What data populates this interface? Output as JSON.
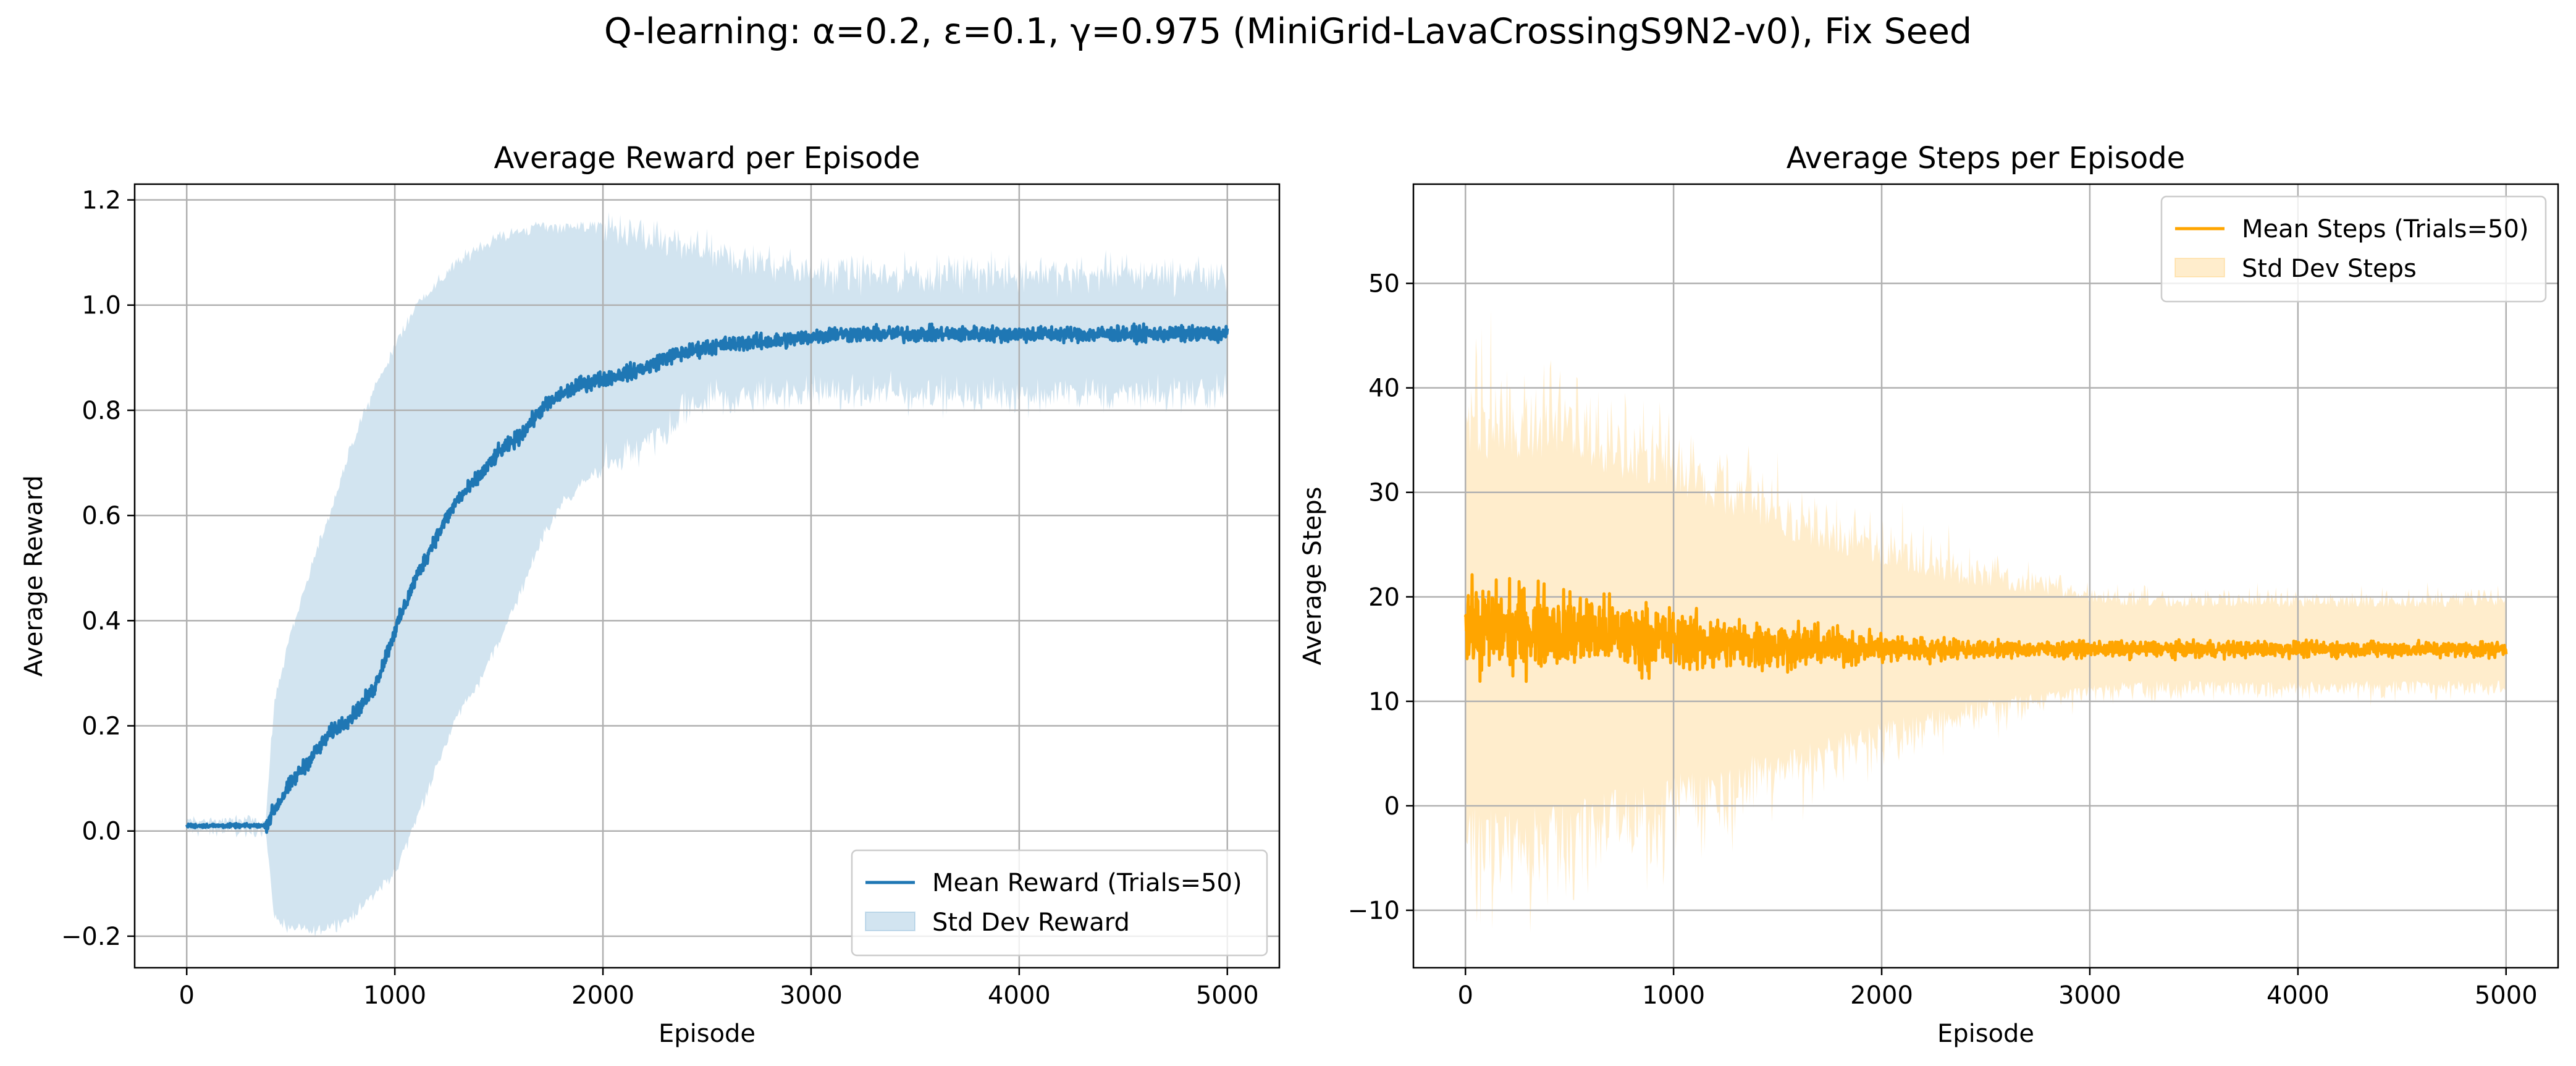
{
  "suptitle": "Q-learning: α=0.2, ε=0.1, γ=0.975 (MiniGrid-LavaCrossingS9N2-v0), Fix Seed",
  "chart_data": [
    {
      "type": "line",
      "title": "Average Reward per Episode",
      "xlabel": "Episode",
      "ylabel": "Average Reward",
      "xlim": [
        -250,
        5250
      ],
      "ylim": [
        -0.26,
        1.23
      ],
      "xticks": [
        0,
        1000,
        2000,
        3000,
        4000,
        5000
      ],
      "xtick_labels": [
        "0",
        "1000",
        "2000",
        "3000",
        "4000",
        "5000"
      ],
      "yticks": [
        -0.2,
        0.0,
        0.2,
        0.4,
        0.6,
        0.8,
        1.0,
        1.2
      ],
      "ytick_labels": [
        "−0.2",
        "0.0",
        "0.2",
        "0.4",
        "0.6",
        "0.8",
        "1.0",
        "1.2"
      ],
      "grid": true,
      "legend_position": "lower-right",
      "series": [
        {
          "name": "Mean Reward (Trials=50)",
          "kind": "line",
          "color": "#1f77b4",
          "x": [
            0,
            100,
            200,
            300,
            380,
            420,
            500,
            600,
            700,
            800,
            900,
            1000,
            1100,
            1200,
            1300,
            1400,
            1500,
            1600,
            1700,
            1800,
            1900,
            2000,
            2100,
            2200,
            2300,
            2400,
            2500,
            2600,
            2700,
            2800,
            2900,
            3000,
            3100,
            3200,
            3400,
            3600,
            3800,
            4000,
            4200,
            4400,
            4600,
            4800,
            5000
          ],
          "y": [
            0.01,
            0.01,
            0.01,
            0.01,
            0.01,
            0.04,
            0.09,
            0.14,
            0.19,
            0.22,
            0.27,
            0.38,
            0.48,
            0.56,
            0.63,
            0.67,
            0.72,
            0.75,
            0.8,
            0.83,
            0.85,
            0.86,
            0.87,
            0.88,
            0.9,
            0.91,
            0.92,
            0.925,
            0.93,
            0.93,
            0.935,
            0.94,
            0.945,
            0.945,
            0.945,
            0.945,
            0.945,
            0.945,
            0.945,
            0.945,
            0.945,
            0.945,
            0.945
          ],
          "noise": 0.012
        },
        {
          "name": "Std Dev Reward",
          "kind": "band",
          "color": "#1f77b4",
          "opacity": 0.2,
          "x": [
            0,
            200,
            380,
            420,
            500,
            600,
            700,
            800,
            900,
            1000,
            1100,
            1200,
            1300,
            1400,
            1500,
            1600,
            1700,
            1800,
            1900,
            2000,
            2100,
            2200,
            2300,
            2400,
            2500,
            2600,
            2800,
            3000,
            3200,
            3500,
            4000,
            4500,
            5000
          ],
          "lower": [
            0.0,
            0.0,
            0.0,
            -0.16,
            -0.19,
            -0.19,
            -0.18,
            -0.16,
            -0.12,
            -0.08,
            0.02,
            0.12,
            0.22,
            0.28,
            0.36,
            0.45,
            0.55,
            0.62,
            0.66,
            0.69,
            0.71,
            0.73,
            0.75,
            0.8,
            0.82,
            0.82,
            0.83,
            0.83,
            0.83,
            0.83,
            0.83,
            0.83,
            0.83
          ],
          "upper": [
            0.02,
            0.02,
            0.02,
            0.24,
            0.38,
            0.5,
            0.62,
            0.74,
            0.84,
            0.92,
            1.0,
            1.04,
            1.08,
            1.11,
            1.13,
            1.14,
            1.15,
            1.15,
            1.15,
            1.15,
            1.14,
            1.13,
            1.12,
            1.11,
            1.1,
            1.09,
            1.08,
            1.07,
            1.06,
            1.06,
            1.06,
            1.06,
            1.06
          ]
        }
      ]
    },
    {
      "type": "line",
      "title": "Average Steps per Episode",
      "xlabel": "Episode",
      "ylabel": "Average Steps",
      "xlim": [
        -250,
        5250
      ],
      "ylim": [
        -15.5,
        59.5
      ],
      "xticks": [
        0,
        1000,
        2000,
        3000,
        4000,
        5000
      ],
      "xtick_labels": [
        "0",
        "1000",
        "2000",
        "3000",
        "4000",
        "5000"
      ],
      "yticks": [
        -10,
        0,
        10,
        20,
        30,
        40,
        50
      ],
      "ytick_labels": [
        "−10",
        "0",
        "10",
        "20",
        "30",
        "40",
        "50"
      ],
      "grid": true,
      "legend_position": "upper-right",
      "series": [
        {
          "name": "Mean Steps (Trials=50)",
          "kind": "line",
          "color": "#ffa500",
          "x": [
            0,
            100,
            200,
            300,
            400,
            500,
            600,
            700,
            800,
            900,
            1000,
            1200,
            1400,
            1600,
            1800,
            2000,
            2200,
            2400,
            2600,
            2800,
            3000,
            3500,
            4000,
            4500,
            5000
          ],
          "y": [
            17.0,
            17.0,
            17.0,
            17.0,
            16.9,
            16.8,
            16.6,
            16.4,
            16.2,
            16.0,
            15.9,
            15.6,
            15.4,
            15.3,
            15.2,
            15.1,
            15.0,
            15.0,
            15.0,
            15.0,
            15.0,
            15.0,
            15.0,
            15.0,
            15.0
          ],
          "noise_start": 3.5,
          "noise_end": 0.6
        },
        {
          "name": "Std Dev Steps",
          "kind": "band",
          "color": "#ffa500",
          "opacity": 0.2,
          "x": [
            0,
            200,
            400,
            600,
            800,
            1000,
            1200,
            1400,
            1600,
            1800,
            2000,
            2200,
            2400,
            2600,
            2800,
            3000,
            3200,
            3500,
            4000,
            4500,
            5000
          ],
          "lower": [
            0,
            0,
            0,
            1,
            2,
            3,
            4,
            5,
            6,
            7,
            8,
            9,
            10,
            10.5,
            11,
            11.5,
            12,
            12,
            12,
            12,
            12
          ],
          "upper": [
            33,
            33,
            33,
            32,
            31,
            30,
            28,
            27,
            25,
            24,
            23,
            22,
            21,
            20.5,
            20,
            19.5,
            19,
            19,
            19,
            19,
            19
          ],
          "noise_start": 9,
          "noise_end": 1.5
        }
      ]
    }
  ]
}
